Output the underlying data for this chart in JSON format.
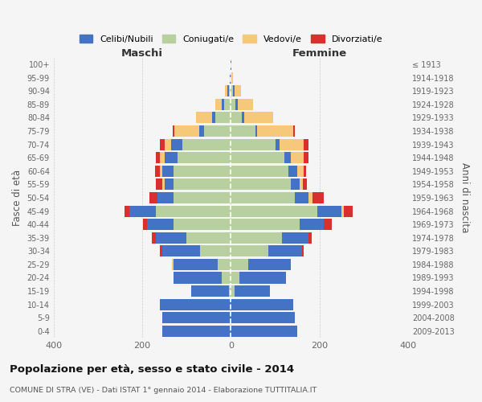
{
  "age_groups": [
    "0-4",
    "5-9",
    "10-14",
    "15-19",
    "20-24",
    "25-29",
    "30-34",
    "35-39",
    "40-44",
    "45-49",
    "50-54",
    "55-59",
    "60-64",
    "65-69",
    "70-74",
    "75-79",
    "80-84",
    "85-89",
    "90-94",
    "95-99",
    "100+"
  ],
  "birth_years": [
    "2009-2013",
    "2004-2008",
    "1999-2003",
    "1994-1998",
    "1989-1993",
    "1984-1988",
    "1979-1983",
    "1974-1978",
    "1969-1973",
    "1964-1968",
    "1959-1963",
    "1954-1958",
    "1949-1953",
    "1944-1948",
    "1939-1943",
    "1934-1938",
    "1929-1933",
    "1924-1928",
    "1919-1923",
    "1914-1918",
    "≤ 1913"
  ],
  "colors": {
    "celibi": "#4472c4",
    "coniugati": "#b8cfa0",
    "vedovi": "#f5c87a",
    "divorziati": "#d9302f"
  },
  "maschi": {
    "celibi": [
      155,
      155,
      160,
      85,
      110,
      100,
      85,
      70,
      60,
      60,
      35,
      20,
      25,
      30,
      25,
      12,
      8,
      5,
      3,
      1,
      1
    ],
    "coniugati": [
      0,
      0,
      0,
      5,
      20,
      30,
      70,
      100,
      130,
      170,
      130,
      130,
      130,
      120,
      110,
      60,
      35,
      15,
      5,
      1,
      0
    ],
    "vedovi": [
      0,
      0,
      0,
      0,
      0,
      3,
      0,
      0,
      0,
      0,
      0,
      5,
      5,
      10,
      15,
      55,
      35,
      15,
      5,
      1,
      0
    ],
    "divorziati": [
      0,
      0,
      0,
      0,
      0,
      0,
      5,
      8,
      8,
      10,
      18,
      15,
      12,
      10,
      10,
      5,
      0,
      0,
      0,
      0,
      0
    ]
  },
  "femmine": {
    "celibi": [
      150,
      145,
      140,
      80,
      105,
      95,
      75,
      60,
      55,
      55,
      30,
      20,
      20,
      15,
      10,
      5,
      5,
      5,
      3,
      1,
      1
    ],
    "coniugati": [
      0,
      0,
      0,
      8,
      20,
      40,
      85,
      115,
      155,
      195,
      145,
      135,
      130,
      120,
      100,
      55,
      25,
      10,
      5,
      1,
      0
    ],
    "vedovi": [
      0,
      0,
      0,
      0,
      0,
      0,
      0,
      0,
      0,
      5,
      10,
      8,
      15,
      30,
      55,
      80,
      65,
      35,
      15,
      2,
      1
    ],
    "divorziati": [
      0,
      0,
      0,
      0,
      0,
      0,
      5,
      8,
      18,
      20,
      25,
      8,
      5,
      10,
      10,
      5,
      0,
      0,
      0,
      0,
      0
    ]
  },
  "xlim": 400,
  "title": "Popolazione per età, sesso e stato civile - 2014",
  "subtitle": "COMUNE DI STRA (VE) - Dati ISTAT 1° gennaio 2014 - Elaborazione TUTTITALIA.IT",
  "xlabel_left": "Maschi",
  "xlabel_right": "Femmine",
  "ylabel_left": "Fasce di età",
  "ylabel_right": "Anni di nascita",
  "legend_labels": [
    "Celibi/Nubili",
    "Coniugati/e",
    "Vedovi/e",
    "Divorziati/e"
  ],
  "background_color": "#f5f5f5"
}
